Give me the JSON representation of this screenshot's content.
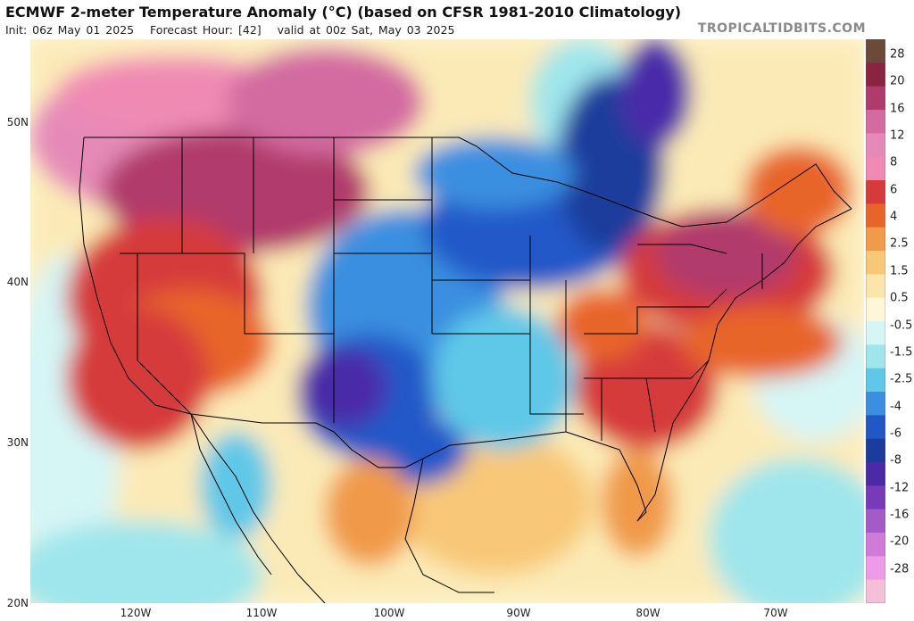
{
  "header": {
    "title": "ECMWF 2-meter Temperature Anomaly (°C) (based on CFSR 1981-2010 Climatology)",
    "init": "Init: 06z May 01 2025",
    "forecast_hour": "Forecast Hour: [42]",
    "valid": "valid at 00z Sat, May 03 2025",
    "brand": "TROPICALTIDBITS.COM"
  },
  "axes": {
    "lat_labels": [
      "50N",
      "40N",
      "30N",
      "20N"
    ],
    "lon_labels": [
      "120W",
      "110W",
      "100W",
      "90W",
      "80W",
      "70W"
    ]
  },
  "colorbar": {
    "labels": [
      "28",
      "20",
      "16",
      "12",
      "8",
      "6",
      "4",
      "2.5",
      "1.5",
      "0.5",
      "-0.5",
      "-1.5",
      "-2.5",
      "-4",
      "-6",
      "-8",
      "-12",
      "-16",
      "-20",
      "-28"
    ],
    "colors": [
      "#6b4a3a",
      "#8a2440",
      "#b13a6c",
      "#d36aa0",
      "#e58ab8",
      "#f08ab3",
      "#d63a3a",
      "#e8652a",
      "#f09a4a",
      "#f8c878",
      "#fbe5a8",
      "#fdf6d8",
      "#d6f5f5",
      "#9fe6ec",
      "#5fc8e8",
      "#3a8fe0",
      "#2158c8",
      "#1b3c9c",
      "#4a2aa8",
      "#7a3ab8",
      "#a45ac8",
      "#d27ad8",
      "#ee9ae8",
      "#f6bfd8"
    ]
  },
  "map": {
    "projection": "equirectangular",
    "extent": {
      "lon_min": -127.5,
      "lon_max": -65.5,
      "lat_min": 20,
      "lat_max": 55
    },
    "land_color": "#f4e6c0",
    "ocean_color": "#ffffff",
    "boundary_color": "#000000"
  }
}
